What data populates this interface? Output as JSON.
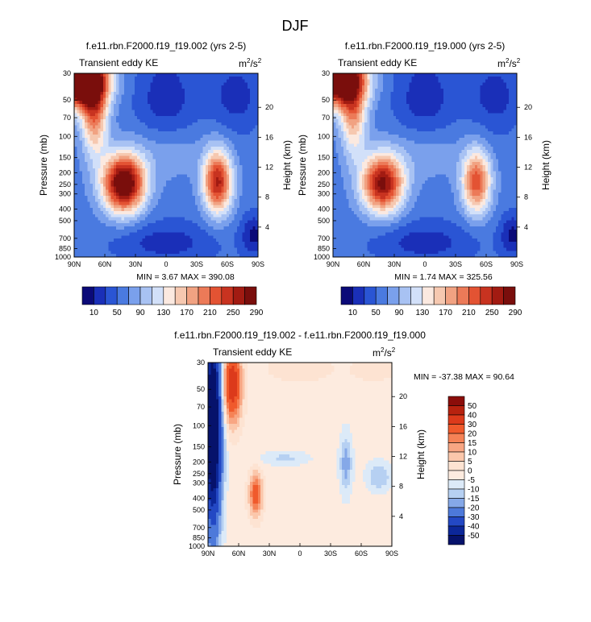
{
  "figure_title": "DJF",
  "chart_data": [
    {
      "type": "heatmap",
      "title": "f.e11.rbn.F2000.f19_f19.002 (yrs 2-5)",
      "left_label": "Transient eddy KE",
      "units": {
        "base": "m",
        "exp1": "2",
        "mid": "/s",
        "exp2": "2"
      },
      "xlabel": "",
      "ylabel": "Pressure (mb)",
      "ylabel_right": "Height (km)",
      "x_ticks": [
        "90N",
        "60N",
        "30N",
        "0",
        "30S",
        "60S",
        "90S"
      ],
      "y_ticks": [
        "30",
        "50",
        "70",
        "100",
        "150",
        "200",
        "250",
        "300",
        "400",
        "500",
        "700",
        "850",
        "1000"
      ],
      "y_right_ticks": [
        "20",
        "16",
        "12",
        "8",
        "4"
      ],
      "stat_text": "MIN =  3.67  MAX = 390.08",
      "min": 3.67,
      "max": 390.08,
      "colorbar_labels": [
        "10",
        "50",
        "90",
        "130",
        "170",
        "210",
        "250",
        "290"
      ],
      "colorbar_colors": [
        "#0b0a78",
        "#1a2fb8",
        "#2a55d4",
        "#4a7ae0",
        "#7aa0ec",
        "#a8c2f3",
        "#d2e0f9",
        "#fbe9e0",
        "#f6c8b0",
        "#f1a282",
        "#ec7a58",
        "#e35333",
        "#c83320",
        "#a21b12",
        "#7a0e0c"
      ]
    },
    {
      "type": "heatmap",
      "title": "f.e11.rbn.F2000.f19_f19.000 (yrs 2-5)",
      "left_label": "Transient eddy KE",
      "units": {
        "base": "m",
        "exp1": "2",
        "mid": "/s",
        "exp2": "2"
      },
      "xlabel": "",
      "ylabel": "Pressure (mb)",
      "ylabel_right": "Height (km)",
      "x_ticks": [
        "90N",
        "60N",
        "30N",
        "0",
        "30S",
        "60S",
        "90S"
      ],
      "y_ticks": [
        "30",
        "50",
        "70",
        "100",
        "150",
        "200",
        "250",
        "300",
        "400",
        "500",
        "700",
        "850",
        "1000"
      ],
      "y_right_ticks": [
        "20",
        "16",
        "12",
        "8",
        "4"
      ],
      "stat_text": "MIN =  1.74  MAX = 325.56",
      "min": 1.74,
      "max": 325.56,
      "colorbar_labels": [
        "10",
        "50",
        "90",
        "130",
        "170",
        "210",
        "250",
        "290"
      ],
      "colorbar_colors": [
        "#0b0a78",
        "#1a2fb8",
        "#2a55d4",
        "#4a7ae0",
        "#7aa0ec",
        "#a8c2f3",
        "#d2e0f9",
        "#fbe9e0",
        "#f6c8b0",
        "#f1a282",
        "#ec7a58",
        "#e35333",
        "#c83320",
        "#a21b12",
        "#7a0e0c"
      ]
    },
    {
      "type": "heatmap",
      "title": "f.e11.rbn.F2000.f19_f19.002 - f.e11.rbn.F2000.f19_f19.000",
      "left_label": "Transient eddy KE",
      "units": {
        "base": "m",
        "exp1": "2",
        "mid": "/s",
        "exp2": "2"
      },
      "xlabel": "",
      "ylabel": "Pressure (mb)",
      "ylabel_right": "Height (km)",
      "x_ticks": [
        "90N",
        "60N",
        "30N",
        "0",
        "30S",
        "60S",
        "90S"
      ],
      "y_ticks": [
        "30",
        "50",
        "70",
        "100",
        "150",
        "200",
        "250",
        "300",
        "400",
        "500",
        "700",
        "850",
        "1000"
      ],
      "y_right_ticks": [
        "20",
        "16",
        "12",
        "8",
        "4"
      ],
      "stat_text": "MIN = -37.38  MAX =  90.64",
      "min": -37.38,
      "max": 90.64,
      "colorbar_labels": [
        "50",
        "40",
        "30",
        "20",
        "15",
        "10",
        "5",
        "0",
        "-5",
        "-10",
        "-15",
        "-20",
        "-30",
        "-40",
        "-50"
      ],
      "colorbar_colors": [
        "#8b0d0a",
        "#b7220f",
        "#dc3a1b",
        "#f05a2c",
        "#f58256",
        "#f8a683",
        "#fbc7ab",
        "#fde3d2",
        "#fdebdf",
        "#dceaf8",
        "#b6d0f2",
        "#85a8e8",
        "#4d79da",
        "#2348c4",
        "#0c2799",
        "#06126b"
      ]
    }
  ]
}
